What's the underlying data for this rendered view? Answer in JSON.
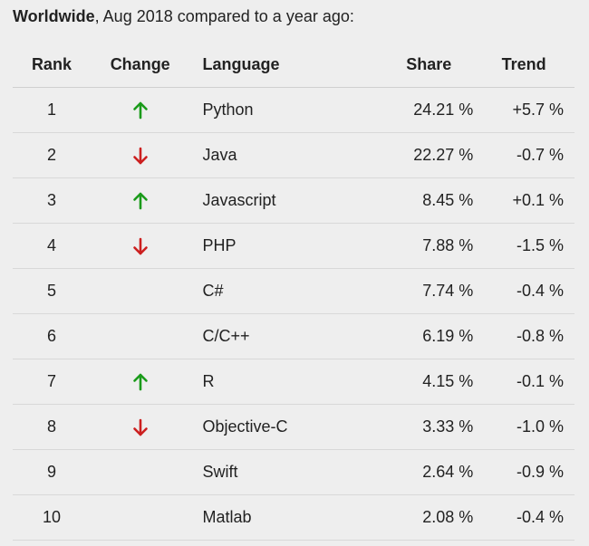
{
  "caption": {
    "bold": "Worldwide",
    "rest": ", Aug 2018 compared to a year ago:"
  },
  "colors": {
    "up": "#1a9b1a",
    "down": "#cc1f1f"
  },
  "table": {
    "headers": {
      "rank": "Rank",
      "change": "Change",
      "language": "Language",
      "share": "Share",
      "trend": "Trend"
    },
    "rows": [
      {
        "rank": "1",
        "change": "up",
        "change_icon": "arrow-up-icon",
        "language": "Python",
        "share": "24.21 %",
        "trend": "+5.7 %"
      },
      {
        "rank": "2",
        "change": "down",
        "change_icon": "arrow-down-icon",
        "language": "Java",
        "share": "22.27 %",
        "trend": "-0.7 %"
      },
      {
        "rank": "3",
        "change": "up",
        "change_icon": "arrow-up-icon",
        "language": "Javascript",
        "share": "8.45 %",
        "trend": "+0.1 %"
      },
      {
        "rank": "4",
        "change": "down",
        "change_icon": "arrow-down-icon",
        "language": "PHP",
        "share": "7.88 %",
        "trend": "-1.5 %"
      },
      {
        "rank": "5",
        "change": "none",
        "change_icon": "",
        "language": "C#",
        "share": "7.74 %",
        "trend": "-0.4 %"
      },
      {
        "rank": "6",
        "change": "none",
        "change_icon": "",
        "language": "C/C++",
        "share": "6.19 %",
        "trend": "-0.8 %"
      },
      {
        "rank": "7",
        "change": "up",
        "change_icon": "arrow-up-icon",
        "language": "R",
        "share": "4.15 %",
        "trend": "-0.1 %"
      },
      {
        "rank": "8",
        "change": "down",
        "change_icon": "arrow-down-icon",
        "language": "Objective-C",
        "share": "3.33 %",
        "trend": "-1.0 %"
      },
      {
        "rank": "9",
        "change": "none",
        "change_icon": "",
        "language": "Swift",
        "share": "2.64 %",
        "trend": "-0.9 %"
      },
      {
        "rank": "10",
        "change": "none",
        "change_icon": "",
        "language": "Matlab",
        "share": "2.08 %",
        "trend": "-0.4 %"
      }
    ]
  }
}
